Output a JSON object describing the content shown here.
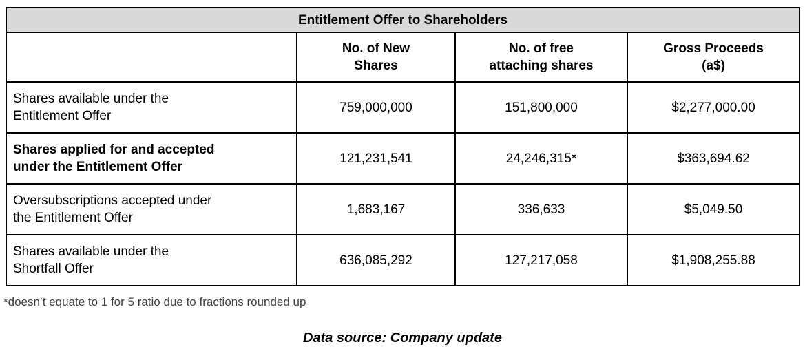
{
  "table": {
    "title": "Entitlement Offer to Shareholders",
    "columns": [
      {
        "name": "No. of New Shares",
        "lines": [
          "No. of New",
          "Shares"
        ]
      },
      {
        "name": "No. of free attaching shares",
        "lines": [
          "No. of free",
          "attaching shares"
        ]
      },
      {
        "name": "Gross Proceeds (a$)",
        "lines": [
          "Gross Proceeds",
          "(a$)"
        ]
      }
    ],
    "rows": [
      {
        "label": "Shares available under the Entitlement Offer",
        "label_lines": [
          "Shares available under the",
          "Entitlement Offer"
        ],
        "bold": false,
        "new_shares": "759,000,000",
        "free_attaching_shares": "151,800,000",
        "gross_proceeds": "$2,277,000.00"
      },
      {
        "label": "Shares applied for and accepted under the Entitlement Offer",
        "label_lines": [
          "Shares applied for and accepted",
          "under the Entitlement Offer"
        ],
        "bold": true,
        "new_shares": "121,231,541",
        "free_attaching_shares": "24,246,315*",
        "gross_proceeds": "$363,694.62"
      },
      {
        "label": "Oversubscriptions accepted under the Entitlement Offer",
        "label_lines": [
          "Oversubscriptions accepted under",
          "the Entitlement Offer"
        ],
        "bold": false,
        "new_shares": "1,683,167",
        "free_attaching_shares": "336,633",
        "gross_proceeds": "$5,049.50"
      },
      {
        "label": "Shares available under the Shortfall Offer",
        "label_lines": [
          "Shares available under the",
          "Shortfall Offer"
        ],
        "bold": false,
        "new_shares": "636,085,292",
        "free_attaching_shares": "127,217,058",
        "gross_proceeds": "$1,908,255.88"
      }
    ]
  },
  "footnote": "*doesn’t equate to 1 for 5 ratio due to fractions rounded up",
  "data_source": "Data source: Company update",
  "colors": {
    "title_header_bg": "#d9d9d9",
    "border": "#000000",
    "footnote_text": "#404040"
  }
}
